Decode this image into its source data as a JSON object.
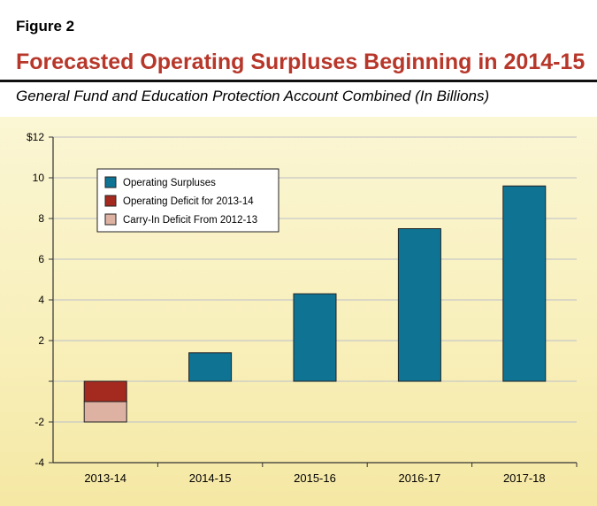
{
  "figure_label": "Figure 2",
  "chart_data": {
    "type": "bar",
    "stacked": true,
    "title": "Forecasted Operating Surpluses Beginning in 2014-15",
    "subtitle": "General Fund and Education Protection Account Combined (In Billions)",
    "categories": [
      "2013-14",
      "2014-15",
      "2015-16",
      "2016-17",
      "2017-18"
    ],
    "series": [
      {
        "name": "Operating Surpluses",
        "color": "#0f7494",
        "values": [
          0,
          1.4,
          4.3,
          7.5,
          9.6
        ]
      },
      {
        "name": "Operating Deficit for 2013-14",
        "color": "#a42a20",
        "values": [
          -1.0,
          0,
          0,
          0,
          0
        ]
      },
      {
        "name": "Carry-In Deficit From 2012-13",
        "color": "#ddb2a2",
        "values": [
          -1.0,
          0,
          0,
          0,
          0
        ]
      }
    ],
    "y_ticks": [
      {
        "value": 12,
        "label": "$12"
      },
      {
        "value": 10,
        "label": "10"
      },
      {
        "value": 8,
        "label": "8"
      },
      {
        "value": 6,
        "label": "6"
      },
      {
        "value": 4,
        "label": "4"
      },
      {
        "value": 2,
        "label": "2"
      },
      {
        "value": 0,
        "label": ""
      },
      {
        "value": -2,
        "label": "-2"
      },
      {
        "value": -4,
        "label": "-4"
      }
    ],
    "ylim": [
      -4,
      12
    ],
    "grid": true,
    "legend": "top-left"
  }
}
